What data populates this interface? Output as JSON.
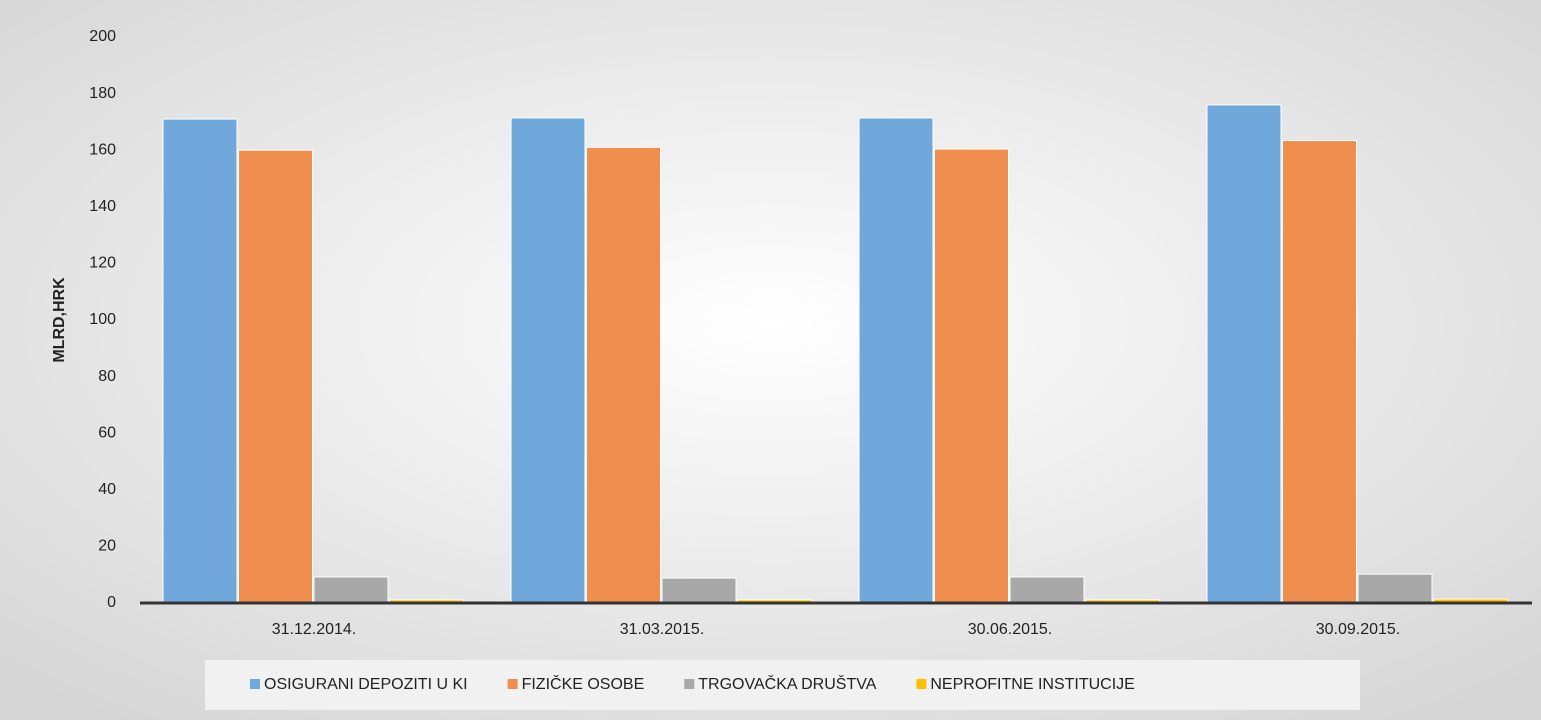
{
  "chart_data": {
    "type": "bar",
    "y_label": "MLRD,HRK",
    "categories": [
      "31.12.2014.",
      "31.03.2015.",
      "30.06.2015.",
      "30.09.2015."
    ],
    "series": [
      {
        "name": "OSIGURANI DEPOZITI U KI",
        "color": "#70a8dc",
        "values": [
          171,
          171.4,
          171.4,
          176
        ]
      },
      {
        "name": "FIZIČKE OSOBE",
        "color": "#f08e50",
        "values": [
          160,
          161,
          160.4,
          163.4
        ]
      },
      {
        "name": "TRGOVAČKA DRUŠTVA",
        "color": "#a8a8a8",
        "values": [
          9.2,
          8.8,
          9.2,
          10.2
        ]
      },
      {
        "name": "NEPROFITNE INSTITUCIJE",
        "color": "#ffc000",
        "values": [
          1.1,
          1.1,
          1.1,
          1.4
        ]
      }
    ],
    "ylim": [
      0,
      200
    ],
    "yticks": [
      0,
      20,
      40,
      60,
      80,
      100,
      120,
      140,
      160,
      180,
      200
    ],
    "grid": false,
    "legend": "bottom"
  }
}
